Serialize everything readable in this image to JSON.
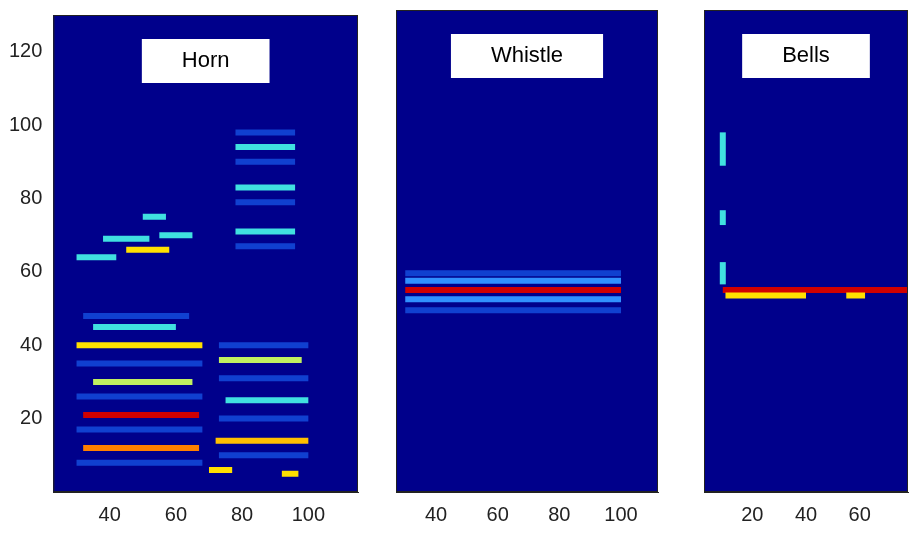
{
  "chart_data": [
    {
      "type": "line",
      "title": "Horn",
      "xlim": [
        23,
        115
      ],
      "xticks": [
        40,
        60,
        80,
        100
      ],
      "ylim": [
        0,
        130
      ],
      "yticks": [
        20,
        40,
        60,
        80,
        100,
        120
      ],
      "grid": false,
      "series": [
        {
          "color": "#1040d0",
          "x": [
            30,
            68
          ],
          "values": [
            8,
            8
          ]
        },
        {
          "color": "#1040d0",
          "x": [
            30,
            68
          ],
          "values": [
            17,
            17
          ]
        },
        {
          "color": "#1040d0",
          "x": [
            30,
            68
          ],
          "values": [
            26,
            26
          ]
        },
        {
          "color": "#1040d0",
          "x": [
            30,
            68
          ],
          "values": [
            35,
            35
          ]
        },
        {
          "color": "#1040d0",
          "x": [
            32,
            64
          ],
          "values": [
            48,
            48
          ]
        },
        {
          "color": "#1040d0",
          "x": [
            73,
            100
          ],
          "values": [
            10,
            10
          ]
        },
        {
          "color": "#1040d0",
          "x": [
            73,
            100
          ],
          "values": [
            20,
            20
          ]
        },
        {
          "color": "#1040d0",
          "x": [
            73,
            100
          ],
          "values": [
            31,
            31
          ]
        },
        {
          "color": "#1040d0",
          "x": [
            73,
            100
          ],
          "values": [
            40,
            40
          ]
        },
        {
          "color": "#1040d0",
          "x": [
            78,
            96
          ],
          "values": [
            67,
            67
          ]
        },
        {
          "color": "#1040d0",
          "x": [
            78,
            96
          ],
          "values": [
            79,
            79
          ]
        },
        {
          "color": "#1040d0",
          "x": [
            78,
            96
          ],
          "values": [
            90,
            90
          ]
        },
        {
          "color": "#1040d0",
          "x": [
            78,
            96
          ],
          "values": [
            98,
            98
          ]
        },
        {
          "color": "#40e0e0",
          "x": [
            35,
            60
          ],
          "values": [
            45,
            45
          ]
        },
        {
          "color": "#ffe000",
          "x": [
            30,
            68
          ],
          "values": [
            40,
            40
          ]
        },
        {
          "color": "#c0f060",
          "x": [
            35,
            65
          ],
          "values": [
            30,
            30
          ]
        },
        {
          "color": "#d00000",
          "x": [
            32,
            67
          ],
          "values": [
            21,
            21
          ]
        },
        {
          "color": "#ff8000",
          "x": [
            32,
            67
          ],
          "values": [
            12,
            12
          ]
        },
        {
          "color": "#40e0e0",
          "x": [
            30,
            42
          ],
          "values": [
            64,
            64
          ]
        },
        {
          "color": "#ffe000",
          "x": [
            45,
            58
          ],
          "values": [
            66,
            66
          ]
        },
        {
          "color": "#40e0e0",
          "x": [
            38,
            52
          ],
          "values": [
            69,
            69
          ]
        },
        {
          "color": "#40e0e0",
          "x": [
            55,
            65
          ],
          "values": [
            70,
            70
          ]
        },
        {
          "color": "#40e0e0",
          "x": [
            50,
            57
          ],
          "values": [
            75,
            75
          ]
        },
        {
          "color": "#ffc000",
          "x": [
            72,
            100
          ],
          "values": [
            14,
            14
          ]
        },
        {
          "color": "#40e0e0",
          "x": [
            75,
            100
          ],
          "values": [
            25,
            25
          ]
        },
        {
          "color": "#c0f060",
          "x": [
            73,
            98
          ],
          "values": [
            36,
            36
          ]
        },
        {
          "color": "#40e0e0",
          "x": [
            78,
            96
          ],
          "values": [
            71,
            71
          ]
        },
        {
          "color": "#40e0e0",
          "x": [
            78,
            96
          ],
          "values": [
            83,
            83
          ]
        },
        {
          "color": "#40e0e0",
          "x": [
            78,
            96
          ],
          "values": [
            94,
            94
          ]
        },
        {
          "color": "#ffe000",
          "x": [
            70,
            77
          ],
          "values": [
            6,
            6
          ]
        },
        {
          "color": "#ffe000",
          "x": [
            92,
            97
          ],
          "values": [
            5,
            5
          ]
        }
      ]
    },
    {
      "type": "line",
      "title": "Whistle",
      "xlim": [
        27,
        112
      ],
      "xticks": [
        40,
        60,
        80,
        100
      ],
      "ylim": [
        0,
        130
      ],
      "grid": false,
      "tick_labels": "x",
      "series": [
        {
          "color": "#1040d0",
          "x": [
            30,
            100
          ],
          "values": [
            49,
            49
          ]
        },
        {
          "color": "#1040d0",
          "x": [
            30,
            100
          ],
          "values": [
            59,
            59
          ]
        },
        {
          "color": "#3090ff",
          "x": [
            30,
            100
          ],
          "values": [
            52,
            52
          ]
        },
        {
          "color": "#3090ff",
          "x": [
            30,
            100
          ],
          "values": [
            57,
            57
          ]
        },
        {
          "color": "#d00000",
          "x": [
            30,
            100
          ],
          "values": [
            54.5,
            54.5
          ]
        }
      ]
    },
    {
      "type": "line",
      "title": "Bells",
      "xlim": [
        2,
        78
      ],
      "xticks": [
        20,
        40,
        60
      ],
      "ylim": [
        0,
        130
      ],
      "grid": false,
      "tick_labels": "x",
      "series": [
        {
          "color": "#ffe000",
          "x": [
            10,
            40
          ],
          "values": [
            53,
            53
          ]
        },
        {
          "color": "#ffe000",
          "x": [
            55,
            62
          ],
          "values": [
            53,
            53
          ]
        },
        {
          "color": "#d00000",
          "x": [
            9,
            78
          ],
          "values": [
            54.5,
            54.5
          ]
        },
        {
          "color": "#40e0e0",
          "x": [
            9,
            9
          ],
          "values": [
            88,
            97
          ]
        },
        {
          "color": "#40e0e0",
          "x": [
            9,
            9
          ],
          "values": [
            72,
            76
          ]
        },
        {
          "color": "#40e0e0",
          "x": [
            9,
            9
          ],
          "values": [
            56,
            62
          ]
        }
      ]
    }
  ]
}
